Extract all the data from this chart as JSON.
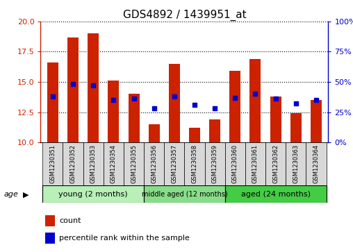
{
  "title": "GDS4892 / 1439951_at",
  "samples": [
    "GSM1230351",
    "GSM1230352",
    "GSM1230353",
    "GSM1230354",
    "GSM1230355",
    "GSM1230356",
    "GSM1230357",
    "GSM1230358",
    "GSM1230359",
    "GSM1230360",
    "GSM1230361",
    "GSM1230362",
    "GSM1230363",
    "GSM1230364"
  ],
  "count_values": [
    16.6,
    18.7,
    19.0,
    15.1,
    14.0,
    11.5,
    16.5,
    11.2,
    11.9,
    15.9,
    16.9,
    13.8,
    12.4,
    13.5
  ],
  "percentile_values": [
    38,
    48,
    47,
    35,
    36,
    28,
    38,
    31,
    28,
    37,
    40,
    36,
    32,
    35
  ],
  "ylim_left": [
    10,
    20
  ],
  "ylim_right": [
    0,
    100
  ],
  "yticks_left": [
    10,
    12.5,
    15,
    17.5,
    20
  ],
  "yticks_right": [
    0,
    25,
    50,
    75,
    100
  ],
  "bar_color": "#cc2200",
  "dot_color": "#0000cc",
  "groups": [
    {
      "label": "young (2 months)",
      "indices": [
        0,
        1,
        2,
        3,
        4
      ],
      "color": "#b8f0b8"
    },
    {
      "label": "middle aged (12 months)",
      "indices": [
        5,
        6,
        7,
        8
      ],
      "color": "#88dd88"
    },
    {
      "label": "aged (24 months)",
      "indices": [
        9,
        10,
        11,
        12,
        13
      ],
      "color": "#44cc44"
    }
  ],
  "age_label": "age",
  "legend_count_label": "count",
  "legend_percentile_label": "percentile rank within the sample",
  "title_fontsize": 11,
  "tick_fontsize": 8,
  "group_label_fontsize": 8,
  "bar_width": 0.55,
  "background_color": "#ffffff",
  "plot_bg_color": "#ffffff",
  "sample_box_color": "#d8d8d8"
}
